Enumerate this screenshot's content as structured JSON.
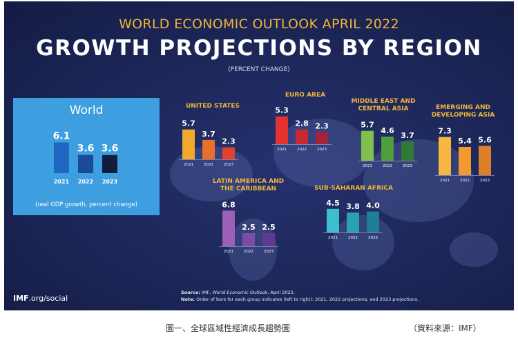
{
  "poster": {
    "kicker": "WORLD ECONOMIC OUTLOOK APRIL 2022",
    "title": "GROWTH PROJECTIONS BY REGION",
    "unit": "(PERCENT CHANGE)",
    "world_title": "World",
    "world_note": "(real GDP growth, percent change)",
    "source_label": "Source:",
    "source_text": "IMF, ",
    "source_pub": "World Economic Outlook",
    "source_date": ", April 2022.",
    "note_label": "Note:",
    "note_text": "Order of bars for each group indicates (left to right): 2021, 2022 projections, and 2023 projections.",
    "brand_bold": "IMF",
    "brand_rest": ".org/social"
  },
  "caption": "圖一、全球區域性經濟成長趨勢圖",
  "credit": "（資料來源：IMF）",
  "chart_data": [
    {
      "type": "bar",
      "title": "World",
      "categories": [
        "2021",
        "2022",
        "2023"
      ],
      "values": [
        6.1,
        3.6,
        3.6
      ],
      "colors": [
        "#1f67c2",
        "#1b4a96",
        "#141c3c"
      ]
    },
    {
      "type": "bar",
      "title": "UNITED STATES",
      "categories": [
        "2021",
        "2022",
        "2023"
      ],
      "values": [
        5.7,
        3.7,
        2.3
      ],
      "colors": [
        "#f1a92e",
        "#e9702a",
        "#df4227"
      ]
    },
    {
      "type": "bar",
      "title": "EURO AREA",
      "categories": [
        "2021",
        "2022",
        "2023"
      ],
      "values": [
        5.3,
        2.8,
        2.3
      ],
      "colors": [
        "#e3322f",
        "#c82a30",
        "#a5223c"
      ]
    },
    {
      "type": "bar",
      "title": "MIDDLE EAST AND CENTRAL ASIA",
      "categories": [
        "2021",
        "2022",
        "2023"
      ],
      "values": [
        5.7,
        4.6,
        3.7
      ],
      "colors": [
        "#7fc04f",
        "#4f9e3b",
        "#2f7a36"
      ]
    },
    {
      "type": "bar",
      "title": "EMERGING AND DEVELOPING ASIA",
      "categories": [
        "2021",
        "2022",
        "2023"
      ],
      "values": [
        7.3,
        5.4,
        5.6
      ],
      "colors": [
        "#f6b640",
        "#f29a30",
        "#e07f2a"
      ]
    },
    {
      "type": "bar",
      "title": "LATIN AMERICA AND THE CARIBBEAN",
      "categories": [
        "2021",
        "2022",
        "2023"
      ],
      "values": [
        6.8,
        2.5,
        2.5
      ],
      "colors": [
        "#9c60b8",
        "#7d4ca6",
        "#603a8e"
      ]
    },
    {
      "type": "bar",
      "title": "SUB-SAHARAN AFRICA",
      "categories": [
        "2021",
        "2022",
        "2023"
      ],
      "values": [
        4.5,
        3.8,
        4.0
      ],
      "colors": [
        "#3bbfcf",
        "#2aa0b4",
        "#1f7f99"
      ]
    }
  ]
}
